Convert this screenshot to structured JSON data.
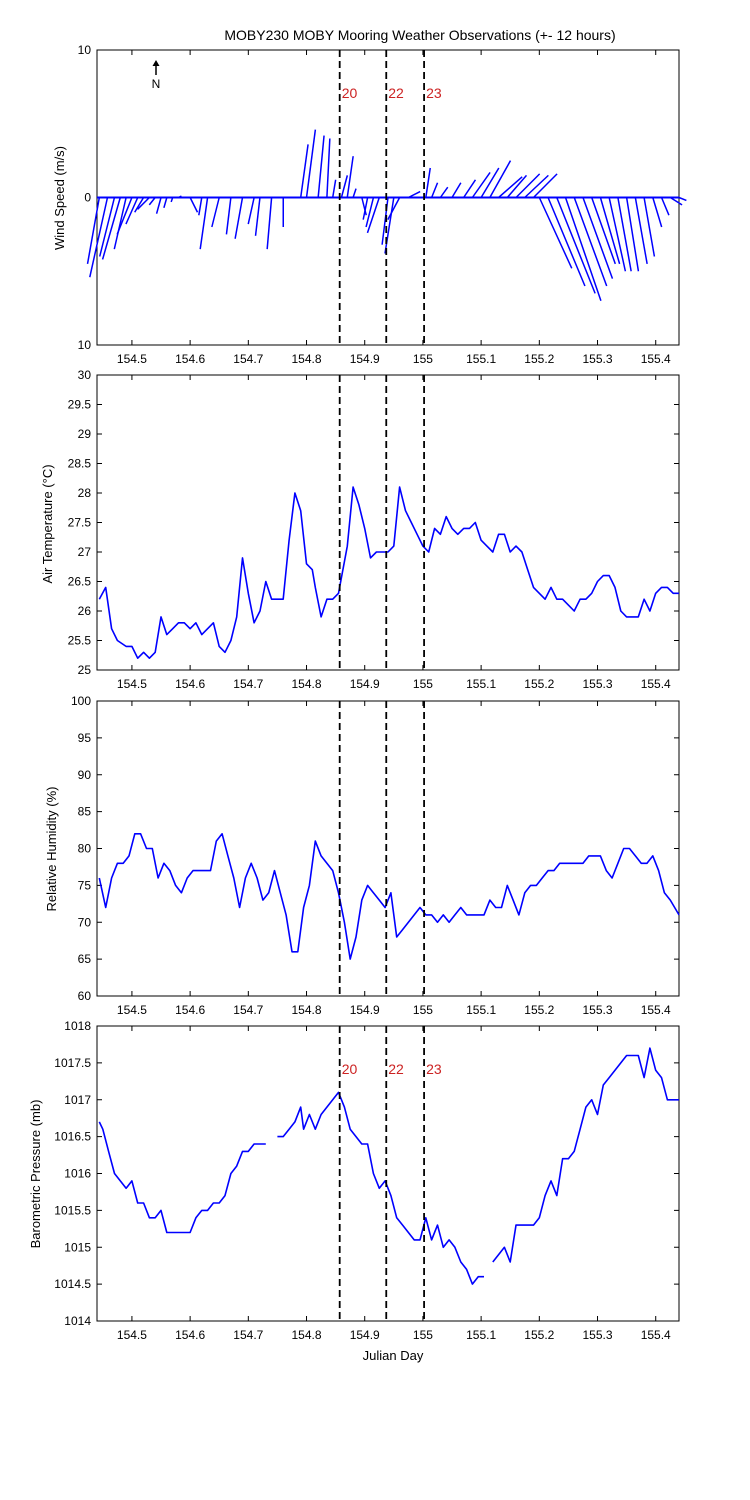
{
  "title": "MOBY230 MOBY Mooring Weather Observations (+- 12 hours)",
  "north_label": "N",
  "colors": {
    "series": "#0000ff",
    "marker_text": "#cc2222",
    "axes": "#000000"
  },
  "chart_data": [
    {
      "id": "wind",
      "type": "vector",
      "ylabel": "Wind Speed (m/s)",
      "xlim": [
        154.44,
        155.44
      ],
      "ylim": [
        -10,
        10
      ],
      "yticks": [
        -10,
        0,
        10
      ],
      "ytick_labels": [
        "10",
        "0",
        "10"
      ],
      "xticks": [
        154.5,
        154.6,
        154.7,
        154.8,
        154.9,
        155.0,
        155.1,
        155.2,
        155.3,
        155.4
      ],
      "xtick_labels": [
        "154.5",
        "154.6",
        "154.7",
        "154.8",
        "154.9",
        "155",
        "155.1",
        "155.2",
        "155.3",
        "155.4"
      ],
      "marker_labels": [
        "20",
        "22",
        "23"
      ],
      "x": [
        154.444,
        154.458,
        154.47,
        154.48,
        154.49,
        154.5,
        154.51,
        154.52,
        154.53,
        154.54,
        154.55,
        154.56,
        154.57,
        154.58,
        154.59,
        154.6,
        154.62,
        154.63,
        154.65,
        154.67,
        154.69,
        154.71,
        154.72,
        154.74,
        154.76,
        154.79,
        154.8,
        154.82,
        154.835,
        154.845,
        154.86,
        154.87,
        154.88,
        154.895,
        154.905,
        154.915,
        154.925,
        154.94,
        154.95,
        154.96,
        154.975,
        155.005,
        155.015,
        155.03,
        155.05,
        155.07,
        155.085,
        155.1,
        155.115,
        155.13,
        155.145,
        155.16,
        155.175,
        155.19,
        155.2,
        155.215,
        155.23,
        155.245,
        155.26,
        155.275,
        155.29,
        155.305,
        155.32,
        155.335,
        155.35,
        155.365,
        155.38,
        155.395,
        155.41,
        155.425,
        155.44
      ],
      "u": [
        -0.8,
        -1.2,
        -1.0,
        -1.2,
        -0.8,
        -1.0,
        -0.8,
        -0.6,
        -0.8,
        -0.4,
        -0.3,
        -0.2,
        -0.1,
        0.2,
        0.3,
        0.5,
        -0.2,
        -0.5,
        -0.5,
        -0.3,
        -0.5,
        -0.4,
        -0.3,
        -0.3,
        0.0,
        0.5,
        0.6,
        0.4,
        0.2,
        0.2,
        0.4,
        0.4,
        0.2,
        0.3,
        -0.3,
        -0.5,
        -0.8,
        -0.4,
        -0.6,
        -0.8,
        0.8,
        0.3,
        0.4,
        0.5,
        0.6,
        0.8,
        1.2,
        1.2,
        1.4,
        1.6,
        1.3,
        1.6,
        1.6,
        1.6,
        2.2,
        2.5,
        2.6,
        2.4,
        2.2,
        2.0,
        1.6,
        1.3,
        1.1,
        0.9,
        0.8,
        0.8,
        0.7,
        0.6,
        0.5,
        0.8,
        0.5
      ],
      "v": [
        -4.5,
        -5.4,
        -4.0,
        -4.2,
        -3.5,
        -2.5,
        -1.8,
        -1.0,
        -0.8,
        -0.5,
        -1.1,
        -0.7,
        -0.3,
        0.1,
        0.0,
        -1.0,
        -1.2,
        -3.5,
        -2.0,
        -2.5,
        -2.8,
        -1.8,
        -2.6,
        -3.5,
        -2.0,
        3.6,
        4.6,
        4.2,
        4.0,
        1.2,
        1.5,
        2.8,
        0.6,
        -1.2,
        -1.5,
        -2.0,
        -2.4,
        -3.2,
        -3.8,
        -1.5,
        0.4,
        2.0,
        1.0,
        0.7,
        1.0,
        1.2,
        1.7,
        2.0,
        2.5,
        1.4,
        1.5,
        1.6,
        1.5,
        1.6,
        -4.8,
        -6.0,
        -6.5,
        -7.0,
        -6.0,
        -5.5,
        -4.5,
        -4.5,
        -5.0,
        -5.0,
        -5.0,
        -4.5,
        -4.0,
        -2.0,
        -1.2,
        -0.5,
        -0.2
      ]
    },
    {
      "id": "air-temp",
      "type": "line",
      "ylabel": "Air Temperature (°C)",
      "xlim": [
        154.44,
        155.44
      ],
      "ylim": [
        25,
        30
      ],
      "yticks": [
        25,
        25.5,
        26,
        26.5,
        27,
        27.5,
        28,
        28.5,
        29,
        29.5,
        30
      ],
      "ytick_labels": [
        "25",
        "25.5",
        "26",
        "26.5",
        "27",
        "27.5",
        "28",
        "28.5",
        "29",
        "29.5",
        "30"
      ],
      "xticks": [
        154.5,
        154.6,
        154.7,
        154.8,
        154.9,
        155.0,
        155.1,
        155.2,
        155.3,
        155.4
      ],
      "xtick_labels": [
        "154.5",
        "154.6",
        "154.7",
        "154.8",
        "154.9",
        "155",
        "155.1",
        "155.2",
        "155.3",
        "155.4"
      ],
      "x": [
        154.444,
        154.455,
        154.465,
        154.475,
        154.49,
        154.5,
        154.51,
        154.52,
        154.53,
        154.54,
        154.55,
        154.56,
        154.57,
        154.58,
        154.59,
        154.6,
        154.61,
        154.62,
        154.63,
        154.64,
        154.65,
        154.66,
        154.67,
        154.68,
        154.69,
        154.7,
        154.71,
        154.72,
        154.73,
        154.74,
        154.75,
        154.76,
        154.77,
        154.78,
        154.79,
        154.8,
        154.81,
        154.815,
        154.825,
        154.835,
        154.845,
        154.855,
        154.87,
        154.88,
        154.89,
        154.9,
        154.91,
        154.92,
        154.93,
        154.94,
        154.95,
        154.96,
        154.97,
        154.98,
        154.99,
        155.0,
        155.01,
        155.02,
        155.03,
        155.04,
        155.05,
        155.06,
        155.07,
        155.08,
        155.09,
        155.1,
        155.11,
        155.12,
        155.13,
        155.14,
        155.15,
        155.16,
        155.17,
        155.18,
        155.19,
        155.2,
        155.21,
        155.22,
        155.23,
        155.24,
        155.25,
        155.26,
        155.27,
        155.28,
        155.29,
        155.3,
        155.31,
        155.32,
        155.33,
        155.34,
        155.35,
        155.36,
        155.37,
        155.38,
        155.39,
        155.4,
        155.41,
        155.42,
        155.43,
        155.44
      ],
      "y": [
        26.2,
        26.4,
        25.7,
        25.5,
        25.4,
        25.4,
        25.2,
        25.3,
        25.2,
        25.3,
        25.9,
        25.6,
        25.7,
        25.8,
        25.8,
        25.7,
        25.8,
        25.6,
        25.7,
        25.8,
        25.4,
        25.3,
        25.5,
        25.9,
        26.9,
        26.3,
        25.8,
        26.0,
        26.5,
        26.2,
        26.2,
        26.2,
        27.2,
        28.0,
        27.7,
        26.8,
        26.7,
        26.4,
        25.9,
        26.2,
        26.2,
        26.3,
        27.1,
        28.1,
        27.8,
        27.4,
        26.9,
        27.0,
        27.0,
        27.0,
        27.1,
        28.1,
        27.7,
        27.5,
        27.3,
        27.1,
        27.0,
        27.4,
        27.3,
        27.6,
        27.4,
        27.3,
        27.4,
        27.4,
        27.5,
        27.2,
        27.1,
        27.0,
        27.3,
        27.3,
        27.0,
        27.1,
        27.0,
        26.7,
        26.4,
        26.3,
        26.2,
        26.4,
        26.2,
        26.2,
        26.1,
        26.0,
        26.2,
        26.2,
        26.3,
        26.5,
        26.6,
        26.6,
        26.4,
        26.0,
        25.9,
        25.9,
        25.9,
        26.2,
        26.0,
        26.3,
        26.4,
        26.4,
        26.3,
        26.3
      ]
    },
    {
      "id": "humidity",
      "type": "line",
      "ylabel": "Relative Humidity (%)",
      "xlim": [
        154.44,
        155.44
      ],
      "ylim": [
        60,
        100
      ],
      "yticks": [
        60,
        65,
        70,
        75,
        80,
        85,
        90,
        95,
        100
      ],
      "ytick_labels": [
        "60",
        "65",
        "70",
        "75",
        "80",
        "85",
        "90",
        "95",
        "100"
      ],
      "xticks": [
        154.5,
        154.6,
        154.7,
        154.8,
        154.9,
        155.0,
        155.1,
        155.2,
        155.3,
        155.4
      ],
      "xtick_labels": [
        "154.5",
        "154.6",
        "154.7",
        "154.8",
        "154.9",
        "155",
        "155.1",
        "155.2",
        "155.3",
        "155.4"
      ],
      "x": [
        154.444,
        154.455,
        154.465,
        154.475,
        154.485,
        154.495,
        154.505,
        154.515,
        154.525,
        154.535,
        154.545,
        154.555,
        154.565,
        154.575,
        154.585,
        154.595,
        154.605,
        154.615,
        154.625,
        154.635,
        154.645,
        154.655,
        154.665,
        154.675,
        154.685,
        154.695,
        154.705,
        154.715,
        154.725,
        154.735,
        154.745,
        154.755,
        154.765,
        154.775,
        154.785,
        154.795,
        154.805,
        154.815,
        154.825,
        154.835,
        154.845,
        154.855,
        154.865,
        154.875,
        154.885,
        154.895,
        154.905,
        154.915,
        154.925,
        154.935,
        154.945,
        154.955,
        154.965,
        154.975,
        154.985,
        154.995,
        155.005,
        155.015,
        155.025,
        155.035,
        155.045,
        155.055,
        155.065,
        155.075,
        155.085,
        155.095,
        155.105,
        155.115,
        155.125,
        155.135,
        155.145,
        155.155,
        155.165,
        155.175,
        155.185,
        155.195,
        155.205,
        155.215,
        155.225,
        155.235,
        155.245,
        155.255,
        155.265,
        155.275,
        155.285,
        155.295,
        155.305,
        155.315,
        155.325,
        155.335,
        155.345,
        155.355,
        155.365,
        155.375,
        155.385,
        155.395,
        155.405,
        155.415,
        155.425,
        155.44
      ],
      "y": [
        76,
        72,
        76,
        78,
        78,
        79,
        82,
        82,
        80,
        80,
        76,
        78,
        77,
        75,
        74,
        76,
        77,
        77,
        77,
        77,
        81,
        82,
        79,
        76,
        72,
        76,
        78,
        76,
        73,
        74,
        77,
        74,
        71,
        66,
        66,
        72,
        75,
        81,
        79,
        78,
        77,
        74,
        70,
        65,
        68,
        73,
        75,
        74,
        73,
        72,
        74,
        68,
        69,
        70,
        71,
        72,
        71,
        71,
        70,
        71,
        70,
        71,
        72,
        71,
        71,
        71,
        71,
        73,
        72,
        72,
        75,
        73,
        71,
        74,
        75,
        75,
        76,
        77,
        77,
        78,
        78,
        78,
        78,
        78,
        79,
        79,
        79,
        77,
        76,
        78,
        80,
        80,
        79,
        78,
        78,
        79,
        77,
        74,
        73,
        71
      ]
    },
    {
      "id": "pressure",
      "type": "line",
      "ylabel": "Barometric Pressure (mb)",
      "xlabel": "Julian Day",
      "xlim": [
        154.44,
        155.44
      ],
      "ylim": [
        1014,
        1018
      ],
      "yticks": [
        1014,
        1014.5,
        1015,
        1015.5,
        1016,
        1016.5,
        1017,
        1017.5,
        1018
      ],
      "ytick_labels": [
        "1014",
        "1014.5",
        "1015",
        "1015.5",
        "1016",
        "1016.5",
        "1017",
        "1017.5",
        "1018"
      ],
      "xticks": [
        154.5,
        154.6,
        154.7,
        154.8,
        154.9,
        155.0,
        155.1,
        155.2,
        155.3,
        155.4
      ],
      "xtick_labels": [
        "154.5",
        "154.6",
        "154.7",
        "154.8",
        "154.9",
        "155",
        "155.1",
        "155.2",
        "155.3",
        "155.4"
      ],
      "marker_labels": [
        "20",
        "22",
        "23"
      ],
      "segments": [
        {
          "x": [
            154.444,
            154.45,
            154.46,
            154.47,
            154.48,
            154.49,
            154.5,
            154.51,
            154.52,
            154.53,
            154.54,
            154.55,
            154.56,
            154.57,
            154.58,
            154.59,
            154.6,
            154.61,
            154.62,
            154.63,
            154.64,
            154.65,
            154.66,
            154.67,
            154.68,
            154.69,
            154.7,
            154.71,
            154.72,
            154.73
          ],
          "y": [
            1016.7,
            1016.6,
            1016.3,
            1016.0,
            1015.9,
            1015.8,
            1015.9,
            1015.6,
            1015.6,
            1015.4,
            1015.4,
            1015.5,
            1015.2,
            1015.2,
            1015.2,
            1015.2,
            1015.2,
            1015.4,
            1015.5,
            1015.5,
            1015.6,
            1015.6,
            1015.7,
            1016.0,
            1016.1,
            1016.3,
            1016.3,
            1016.4,
            1016.4,
            1016.4
          ]
        },
        {
          "x": [
            154.75,
            154.76,
            154.77,
            154.78,
            154.79,
            154.795,
            154.805,
            154.815,
            154.825,
            154.835,
            154.845,
            154.855,
            154.865,
            154.875,
            154.885,
            154.895,
            154.905,
            154.915,
            154.925,
            154.935,
            154.945,
            154.955,
            154.965,
            154.975,
            154.985,
            154.995,
            155.005,
            155.015,
            155.025,
            155.035,
            155.045,
            155.055,
            155.065,
            155.075,
            155.085,
            155.095,
            155.105
          ],
          "y": [
            1016.5,
            1016.5,
            1016.6,
            1016.7,
            1016.9,
            1016.6,
            1016.8,
            1016.6,
            1016.8,
            1016.9,
            1017.0,
            1017.1,
            1016.9,
            1016.6,
            1016.5,
            1016.4,
            1016.4,
            1016.0,
            1015.8,
            1015.9,
            1015.7,
            1015.4,
            1015.3,
            1015.2,
            1015.1,
            1015.1,
            1015.4,
            1015.1,
            1015.3,
            1015.0,
            1015.1,
            1015.0,
            1014.8,
            1014.7,
            1014.5,
            1014.6,
            1014.6
          ]
        },
        {
          "x": [
            155.12,
            155.13,
            155.14,
            155.15,
            155.16,
            155.17,
            155.18,
            155.19,
            155.2,
            155.21,
            155.22,
            155.23,
            155.24,
            155.25,
            155.26,
            155.27,
            155.28,
            155.29,
            155.3,
            155.31,
            155.32,
            155.33,
            155.34,
            155.35,
            155.36,
            155.37,
            155.38,
            155.39,
            155.4,
            155.41,
            155.42,
            155.43,
            155.44
          ],
          "y": [
            1014.8,
            1014.9,
            1015.0,
            1014.8,
            1015.3,
            1015.3,
            1015.3,
            1015.3,
            1015.4,
            1015.7,
            1015.9,
            1015.7,
            1016.2,
            1016.2,
            1016.3,
            1016.6,
            1016.9,
            1017.0,
            1016.8,
            1017.2,
            1017.3,
            1017.4,
            1017.5,
            1017.6,
            1017.6,
            1017.6,
            1017.3,
            1017.7,
            1017.4,
            1017.3,
            1017.0,
            1017.0,
            1017.0
          ]
        }
      ]
    }
  ],
  "event_markers_x": [
    154.857,
    154.937,
    155.002
  ]
}
